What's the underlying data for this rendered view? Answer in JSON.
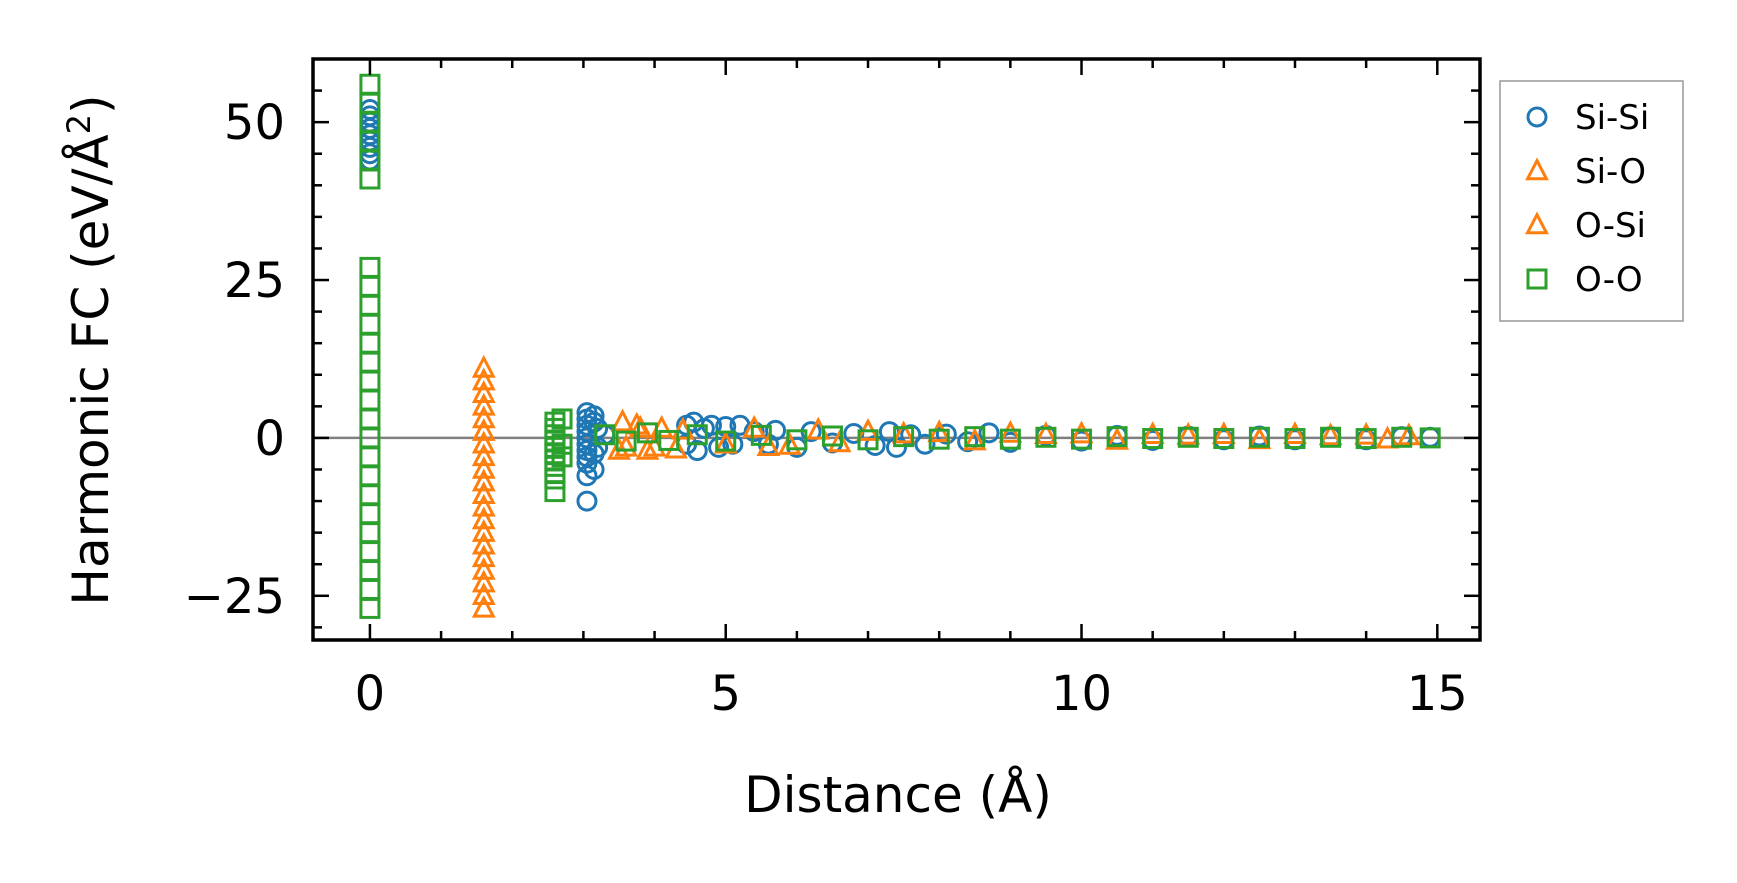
{
  "chart_data": {
    "type": "scatter",
    "title": "",
    "xlabel": "Distance (Å)",
    "ylabel": "Harmonic FC (eV/Å²)",
    "ylabel_parts": {
      "pre": "Harmonic FC (eV/Å",
      "sup": "2",
      "post": ")"
    },
    "xlim": [
      -0.8,
      15.6
    ],
    "ylim": [
      -32,
      60
    ],
    "xticks": [
      0,
      5,
      10,
      15
    ],
    "xtick_labels": [
      "0",
      "5",
      "10",
      "15"
    ],
    "yticks": [
      -25,
      0,
      25,
      50
    ],
    "ytick_labels": [
      "−25",
      "0",
      "25",
      "50"
    ],
    "zero_line": 0,
    "grid": false,
    "legend_position": "outside-right-top",
    "series": [
      {
        "name": "Si-Si",
        "marker": "circle",
        "color": "#1f77b4",
        "points": [
          [
            0,
            44
          ],
          [
            0,
            46
          ],
          [
            0,
            47
          ],
          [
            0,
            48
          ],
          [
            0,
            49
          ],
          [
            0,
            50
          ],
          [
            0,
            51
          ],
          [
            0,
            45
          ],
          [
            0,
            52
          ],
          [
            3.05,
            -10
          ],
          [
            3.05,
            -6
          ],
          [
            3.05,
            -4
          ],
          [
            3.05,
            -3
          ],
          [
            3.05,
            -2
          ],
          [
            3.05,
            -1
          ],
          [
            3.05,
            0
          ],
          [
            3.05,
            1
          ],
          [
            3.05,
            2
          ],
          [
            3.05,
            3
          ],
          [
            3.05,
            4
          ],
          [
            3.15,
            3.5
          ],
          [
            3.15,
            2.5
          ],
          [
            3.15,
            -2.5
          ],
          [
            3.15,
            -5
          ],
          [
            3.2,
            1.5
          ],
          [
            3.2,
            -1.5
          ],
          [
            3.3,
            0.5
          ],
          [
            4.45,
            2
          ],
          [
            4.45,
            -1
          ],
          [
            4.55,
            2.5
          ],
          [
            4.6,
            -2
          ],
          [
            4.7,
            1.5
          ],
          [
            4.8,
            2
          ],
          [
            4.9,
            -1.5
          ],
          [
            5.0,
            1.8
          ],
          [
            5.1,
            -1
          ],
          [
            5.2,
            2
          ],
          [
            5.4,
            1
          ],
          [
            5.6,
            -1
          ],
          [
            5.7,
            1.2
          ],
          [
            6.0,
            -1.5
          ],
          [
            6.2,
            1
          ],
          [
            6.5,
            -0.8
          ],
          [
            6.8,
            0.7
          ],
          [
            7.1,
            -1.2
          ],
          [
            7.3,
            1
          ],
          [
            7.4,
            -1.5
          ],
          [
            7.6,
            0.5
          ],
          [
            7.8,
            -1
          ],
          [
            8.1,
            0.6
          ],
          [
            8.4,
            -0.6
          ],
          [
            8.7,
            0.8
          ],
          [
            9.0,
            -0.7
          ],
          [
            9.5,
            0.4
          ],
          [
            10.0,
            -0.5
          ],
          [
            10.5,
            0.4
          ],
          [
            11.0,
            -0.4
          ],
          [
            11.5,
            0.3
          ],
          [
            12.0,
            -0.3
          ],
          [
            12.5,
            0.3
          ],
          [
            13.0,
            -0.3
          ],
          [
            13.5,
            0.2
          ],
          [
            14.0,
            -0.3
          ],
          [
            14.5,
            0.2
          ],
          [
            14.9,
            0.1
          ]
        ]
      },
      {
        "name": "Si-O",
        "marker": "triangle",
        "color": "#ff7f0e",
        "points": [
          [
            1.6,
            11
          ],
          [
            1.6,
            9
          ],
          [
            1.6,
            7
          ],
          [
            1.6,
            5
          ],
          [
            1.6,
            3
          ],
          [
            1.6,
            1
          ],
          [
            1.6,
            -1
          ],
          [
            1.6,
            -3
          ],
          [
            1.6,
            -5
          ],
          [
            1.6,
            -7
          ],
          [
            1.6,
            -9
          ],
          [
            1.6,
            -11
          ],
          [
            1.6,
            -13
          ],
          [
            1.6,
            -15
          ],
          [
            1.6,
            -17
          ],
          [
            1.6,
            -19
          ],
          [
            1.6,
            -21
          ],
          [
            1.6,
            -23
          ],
          [
            1.6,
            -25
          ],
          [
            1.6,
            -27
          ],
          [
            3.55,
            2.5
          ],
          [
            3.6,
            -1.5
          ],
          [
            3.75,
            2
          ],
          [
            3.9,
            -2
          ],
          [
            4.1,
            1.5
          ],
          [
            4.3,
            -1.8
          ],
          [
            5.4,
            1.5
          ],
          [
            5.9,
            -1.2
          ],
          [
            6.3,
            1.2
          ],
          [
            7.0,
            1
          ],
          [
            8.0,
            0.8
          ],
          [
            9.0,
            0.7
          ],
          [
            10.0,
            0.6
          ],
          [
            11.0,
            0.5
          ],
          [
            12.0,
            0.5
          ],
          [
            13.0,
            0.5
          ],
          [
            14.0,
            0.4
          ],
          [
            14.6,
            0.3
          ]
        ]
      },
      {
        "name": "O-Si",
        "marker": "triangle",
        "color": "#ff7f0e",
        "points": [
          [
            3.5,
            -2
          ],
          [
            3.8,
            1.5
          ],
          [
            4.0,
            -1.5
          ],
          [
            4.4,
            1.2
          ],
          [
            5.0,
            -1
          ],
          [
            5.6,
            -1.4
          ],
          [
            6.6,
            -0.8
          ],
          [
            7.5,
            0.6
          ],
          [
            8.5,
            -0.5
          ],
          [
            9.5,
            0.5
          ],
          [
            10.5,
            -0.4
          ],
          [
            11.5,
            0.4
          ],
          [
            12.5,
            -0.3
          ],
          [
            13.5,
            0.3
          ],
          [
            14.3,
            -0.2
          ]
        ]
      },
      {
        "name": "O-O",
        "marker": "square",
        "color": "#2ca02c",
        "points": [
          [
            0,
            56
          ],
          [
            0,
            53
          ],
          [
            0,
            50
          ],
          [
            0,
            47
          ],
          [
            0,
            44
          ],
          [
            0,
            41
          ],
          [
            0,
            27
          ],
          [
            0,
            24
          ],
          [
            0,
            21
          ],
          [
            0,
            18
          ],
          [
            0,
            15
          ],
          [
            0,
            12
          ],
          [
            0,
            9
          ],
          [
            0,
            6
          ],
          [
            0,
            3
          ],
          [
            0,
            0
          ],
          [
            0,
            -3
          ],
          [
            0,
            -6
          ],
          [
            0,
            -9
          ],
          [
            0,
            -12
          ],
          [
            0,
            -15
          ],
          [
            0,
            -18
          ],
          [
            0,
            -21
          ],
          [
            0,
            -24
          ],
          [
            0,
            -27
          ],
          [
            2.6,
            2.5
          ],
          [
            2.6,
            1.5
          ],
          [
            2.6,
            0.5
          ],
          [
            2.6,
            -0.5
          ],
          [
            2.6,
            -1.5
          ],
          [
            2.6,
            -2.5
          ],
          [
            2.6,
            -3.5
          ],
          [
            2.6,
            -4.5
          ],
          [
            2.6,
            -5.5
          ],
          [
            2.6,
            -6.5
          ],
          [
            2.6,
            -8.5
          ],
          [
            2.7,
            3
          ],
          [
            2.7,
            -1
          ],
          [
            2.7,
            -3
          ],
          [
            3.3,
            0.5
          ],
          [
            3.6,
            -0.5
          ],
          [
            3.9,
            0.8
          ],
          [
            4.2,
            -0.4
          ],
          [
            4.6,
            0.5
          ],
          [
            5.0,
            -0.5
          ],
          [
            5.5,
            0.4
          ],
          [
            6.0,
            -0.3
          ],
          [
            6.5,
            0.3
          ],
          [
            7.0,
            -0.3
          ],
          [
            7.5,
            0.2
          ],
          [
            8.0,
            -0.2
          ],
          [
            8.5,
            0.2
          ],
          [
            9.0,
            -0.2
          ],
          [
            9.5,
            0.1
          ],
          [
            10.0,
            -0.2
          ],
          [
            10.5,
            0.2
          ],
          [
            11.0,
            -0.1
          ],
          [
            11.5,
            0.1
          ],
          [
            12.0,
            -0.1
          ],
          [
            12.5,
            0.1
          ],
          [
            13.0,
            -0.1
          ],
          [
            13.5,
            0.1
          ],
          [
            14.0,
            -0.1
          ],
          [
            14.5,
            0.1
          ],
          [
            14.9,
            0
          ]
        ]
      }
    ]
  }
}
